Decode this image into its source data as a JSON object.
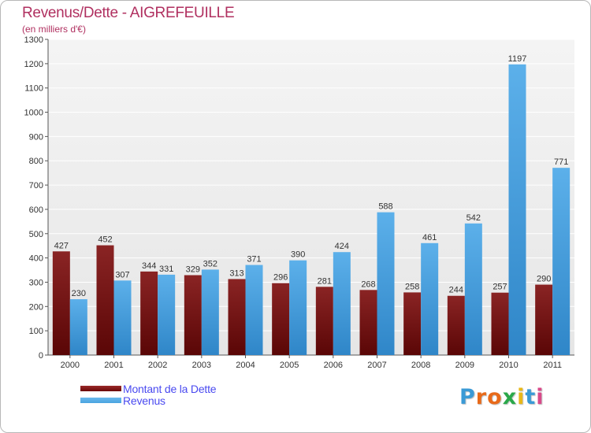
{
  "title": "Revenus/Dette - AIGREFEUILLE",
  "subtitle": "(en milliers d'€)",
  "colors": {
    "title": "#b03060",
    "dette": "#7a1010",
    "revenus": "#3a96d8",
    "legend_text": "#4a4af0"
  },
  "legend": {
    "items": [
      {
        "label": "Montant de la Dette",
        "color": "#6b0808"
      },
      {
        "label": "Revenus",
        "color": "#4aa3e0"
      }
    ]
  },
  "logo": {
    "letters": [
      "P",
      "r",
      "o",
      "x",
      "i",
      "t",
      "i"
    ],
    "colors": [
      "#3a9ad6",
      "#e86a1a",
      "#e86a1a",
      "#2aa84a",
      "#e8b81a",
      "#3a9ad6",
      "#d84a8a"
    ]
  },
  "chart_data": {
    "type": "bar",
    "categories": [
      "2000",
      "2001",
      "2002",
      "2003",
      "2004",
      "2005",
      "2006",
      "2007",
      "2008",
      "2009",
      "2010",
      "2011"
    ],
    "series": [
      {
        "name": "Montant de la Dette",
        "values": [
          427,
          452,
          344,
          329,
          313,
          296,
          281,
          268,
          258,
          244,
          257,
          290
        ]
      },
      {
        "name": "Revenus",
        "values": [
          230,
          307,
          331,
          352,
          371,
          390,
          424,
          588,
          461,
          542,
          1197,
          771
        ]
      }
    ],
    "ylim": [
      0,
      1300
    ],
    "yticks": [
      0,
      100,
      200,
      300,
      400,
      500,
      600,
      700,
      800,
      900,
      1000,
      1100,
      1200,
      1300
    ],
    "grid": true,
    "legend_position": "bottom-left"
  }
}
